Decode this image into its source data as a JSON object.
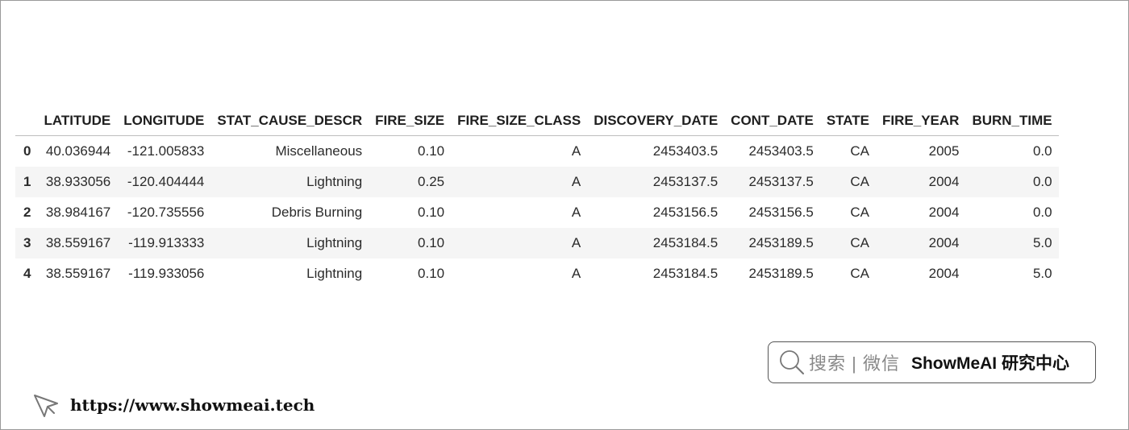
{
  "table": {
    "columns": [
      "",
      "LATITUDE",
      "LONGITUDE",
      "STAT_CAUSE_DESCR",
      "FIRE_SIZE",
      "FIRE_SIZE_CLASS",
      "DISCOVERY_DATE",
      "CONT_DATE",
      "STATE",
      "FIRE_YEAR",
      "BURN_TIME"
    ],
    "rows": [
      [
        "0",
        "40.036944",
        "-121.005833",
        "Miscellaneous",
        "0.10",
        "A",
        "2453403.5",
        "2453403.5",
        "CA",
        "2005",
        "0.0"
      ],
      [
        "1",
        "38.933056",
        "-120.404444",
        "Lightning",
        "0.25",
        "A",
        "2453137.5",
        "2453137.5",
        "CA",
        "2004",
        "0.0"
      ],
      [
        "2",
        "38.984167",
        "-120.735556",
        "Debris Burning",
        "0.10",
        "A",
        "2453156.5",
        "2453156.5",
        "CA",
        "2004",
        "0.0"
      ],
      [
        "3",
        "38.559167",
        "-119.913333",
        "Lightning",
        "0.10",
        "A",
        "2453184.5",
        "2453189.5",
        "CA",
        "2004",
        "5.0"
      ],
      [
        "4",
        "38.559167",
        "-119.933056",
        "Lightning",
        "0.10",
        "A",
        "2453184.5",
        "2453189.5",
        "CA",
        "2004",
        "5.0"
      ]
    ]
  },
  "search_banner": {
    "icon": "search-icon",
    "prompt": "搜索 | 微信",
    "brand": "ShowMeAI 研究中心"
  },
  "footer": {
    "icon": "cursor-arrow-icon",
    "url": "https://www.showmeai.tech"
  }
}
